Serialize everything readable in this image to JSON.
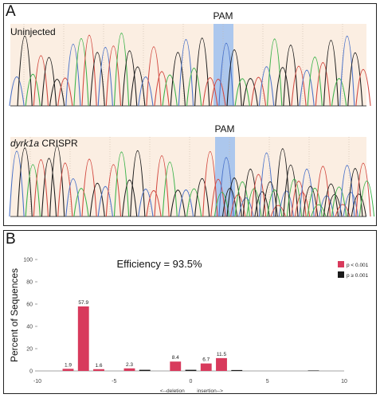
{
  "panel_a": {
    "letter": "A",
    "tracks": [
      {
        "label": "Uninjected",
        "label_italic_part": "",
        "pam_label": "PAM"
      },
      {
        "label": " CRISPR",
        "label_italic_part": "dyrk1a",
        "pam_label": "PAM"
      }
    ],
    "colors": {
      "A": "#3bb34a",
      "C": "#4a72c9",
      "G": "#1c1c1c",
      "T": "#d2483f",
      "pam_box": "#9ec0ef",
      "trace_bg": "#fbeee2"
    }
  },
  "panel_b": {
    "letter": "B",
    "efficiency_label": "Efficiency = 93.5%",
    "legend": [
      {
        "label": "p < 0.001",
        "color": "#d83a5c"
      },
      {
        "label": "p ≥ 0.001",
        "color": "#1a1a1a"
      }
    ],
    "axis_direction_left": "<--deletion",
    "axis_direction_right": "insertion-->",
    "chart_data": {
      "type": "bar",
      "ylabel": "Percent of Sequences",
      "xlabel": "",
      "ylim": [
        0,
        100
      ],
      "xlim": [
        -10,
        10
      ],
      "x_ticks": [
        "-10",
        "-5",
        "0",
        "5",
        "10"
      ],
      "y_ticks": [
        "0",
        "20",
        "40",
        "60",
        "80",
        "100"
      ],
      "bars": [
        {
          "x": -8,
          "value": 1.9,
          "label": "1.9",
          "significant": true
        },
        {
          "x": -7,
          "value": 57.9,
          "label": "57.9",
          "significant": true
        },
        {
          "x": -6,
          "value": 1.6,
          "label": "1.6",
          "significant": true
        },
        {
          "x": -4,
          "value": 2.3,
          "label": "2.3",
          "significant": true
        },
        {
          "x": -3,
          "value": 1.0,
          "label": "",
          "significant": false
        },
        {
          "x": -1,
          "value": 8.4,
          "label": "8.4",
          "significant": true
        },
        {
          "x": 0,
          "value": 1.0,
          "label": "",
          "significant": false
        },
        {
          "x": 1,
          "value": 6.7,
          "label": "6.7",
          "significant": true
        },
        {
          "x": 2,
          "value": 11.5,
          "label": "11.5",
          "significant": true
        },
        {
          "x": 3,
          "value": 0.8,
          "label": "",
          "significant": false
        },
        {
          "x": 8,
          "value": 0.4,
          "label": "",
          "significant": false
        }
      ]
    }
  }
}
